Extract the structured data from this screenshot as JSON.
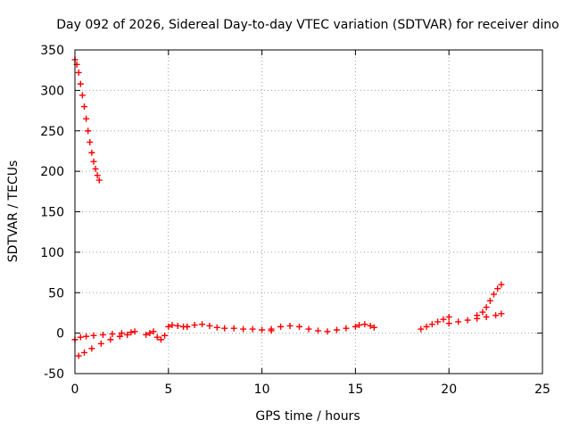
{
  "chart_data": {
    "type": "scatter",
    "title": "Day 092 of 2026, Sidereal Day-to-day VTEC variation (SDTVAR) for receiver dino",
    "xlabel": "GPS time / hours",
    "ylabel": "SDTVAR / TECUs",
    "xlim": [
      0,
      25
    ],
    "ylim": [
      -50,
      350
    ],
    "xticks": [
      "0",
      "5",
      "10",
      "15",
      "20",
      "25"
    ],
    "yticks": [
      "-50",
      "0",
      "50",
      "100",
      "150",
      "200",
      "250",
      "300",
      "350"
    ],
    "grid": true,
    "marker": "+",
    "color": "#ff0000",
    "series": [
      {
        "x": [
          0.0,
          0.1,
          0.2,
          0.3,
          0.4,
          0.5,
          0.6,
          0.7,
          0.8,
          0.9,
          1.0,
          1.1,
          1.2,
          1.3
        ],
        "y": [
          338,
          332,
          322,
          308,
          294,
          280,
          265,
          250,
          236,
          223,
          212,
          203,
          195,
          189
        ]
      },
      {
        "x": [
          0.0,
          0.3,
          0.6,
          1.0,
          1.5,
          2.0,
          2.5,
          3.0,
          3.2
        ],
        "y": [
          -8,
          -5,
          -4,
          -3,
          -2,
          -1,
          0,
          1,
          2
        ]
      },
      {
        "x": [
          0.2,
          0.5,
          0.9,
          1.4,
          1.9,
          2.4,
          2.8
        ],
        "y": [
          -28,
          -24,
          -19,
          -13,
          -8,
          -4,
          -2
        ]
      },
      {
        "x": [
          3.8,
          4.0,
          4.2,
          4.4,
          4.6,
          4.8,
          5.0,
          5.2,
          5.5,
          5.8,
          6.0
        ],
        "y": [
          -2,
          0,
          2,
          -5,
          -8,
          -3,
          8,
          10,
          9,
          8,
          8
        ]
      },
      {
        "x": [
          6.0,
          6.4,
          6.8,
          7.2,
          7.6,
          8.0,
          8.5,
          9.0,
          9.5,
          10.0,
          10.5
        ],
        "y": [
          8,
          10,
          11,
          9,
          7,
          6,
          6,
          5,
          5,
          4,
          3
        ]
      },
      {
        "x": [
          10.5,
          11.0,
          11.5,
          12.0,
          12.5,
          13.0,
          13.5,
          14.0,
          14.5,
          15.0
        ],
        "y": [
          5,
          8,
          9,
          8,
          5,
          3,
          2,
          4,
          6,
          8
        ]
      },
      {
        "x": [
          15.2,
          15.5,
          15.8,
          16.0
        ],
        "y": [
          10,
          11,
          9,
          7
        ]
      },
      {
        "x": [
          18.5,
          18.8,
          19.1,
          19.4,
          19.7,
          20.0
        ],
        "y": [
          5,
          8,
          11,
          14,
          17,
          20
        ]
      },
      {
        "x": [
          20.0,
          20.5,
          21.0,
          21.5,
          22.0,
          22.5,
          22.8
        ],
        "y": [
          12,
          14,
          16,
          18,
          20,
          22,
          24
        ]
      },
      {
        "x": [
          21.5,
          21.8,
          22.0,
          22.2,
          22.4,
          22.6,
          22.8
        ],
        "y": [
          22,
          26,
          32,
          40,
          48,
          55,
          60
        ]
      }
    ]
  }
}
